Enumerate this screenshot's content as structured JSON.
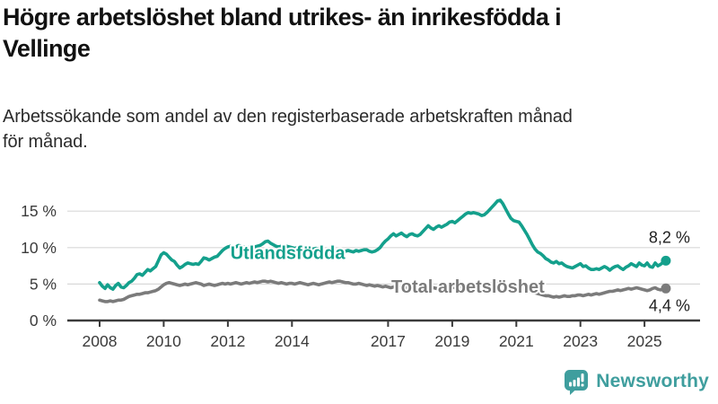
{
  "header": {
    "title_lines": [
      "Högre arbetslöshet bland utrikes- än inrikesfödda i",
      "Vellinge"
    ],
    "subtitle_lines": [
      "Arbetssökande som andel av den registerbaserade arbetskraften månad",
      "för månad."
    ]
  },
  "colors": {
    "foreign_born_line": "#14a08c",
    "total_line": "#7b7b7b",
    "grid": "#d8d8d8",
    "axis": "#3b3b3b",
    "end_label_text": "#1f1f1f",
    "brand_teal": "#3f9e9e"
  },
  "footer": {
    "brand": "Newsworthy",
    "logo_icon": "speech-bubble-bar-chart"
  },
  "chart_data": {
    "type": "line",
    "title": "Högre arbetslöshet bland utrikes- än inrikesfödda i Vellinge",
    "subtitle": "Arbetssökande som andel av den registerbaserade arbetskraften månad för månad.",
    "frequency": "monthly",
    "x_start": {
      "year": 2008,
      "month": 1
    },
    "x_end": {
      "year": 2025,
      "month": 9
    },
    "grid": "horizontal",
    "legend_position": "inline-labels",
    "x_axis": {
      "ticks": [
        "2008",
        "2010",
        "2012",
        "2014",
        "2017",
        "2019",
        "2021",
        "2023",
        "2025"
      ]
    },
    "y_axis": {
      "range": [
        0,
        17.5
      ],
      "ticks": [
        {
          "value": 0,
          "label": "0 %"
        },
        {
          "value": 5,
          "label": "5 %"
        },
        {
          "value": 10,
          "label": "10 %"
        },
        {
          "value": 15,
          "label": "15 %"
        }
      ]
    },
    "series": [
      {
        "name": "Utlandsfödda",
        "slug": "utlandsfodda",
        "color": "#14a08c",
        "end_label": "8,2 %",
        "end_label_pos": "above",
        "label_at": {
          "year": 2012.08,
          "pct": 9.2
        },
        "values": [
          5.2,
          4.7,
          4.4,
          4.9,
          4.5,
          4.3,
          4.8,
          5.1,
          4.6,
          4.5,
          4.8,
          5.2,
          5.4,
          5.8,
          6.3,
          6.4,
          6.2,
          6.6,
          7.0,
          6.8,
          7.1,
          7.4,
          8.2,
          9.0,
          9.3,
          9.1,
          8.7,
          8.3,
          8.1,
          7.6,
          7.2,
          7.4,
          7.7,
          7.9,
          7.8,
          7.7,
          7.8,
          7.7,
          8.1,
          8.6,
          8.5,
          8.3,
          8.5,
          8.7,
          8.8,
          9.2,
          9.6,
          9.9,
          10.1,
          10.2,
          10.0,
          10.1,
          10.3,
          10.2,
          10.1,
          10.0,
          10.1,
          10.2,
          10.1,
          10.2,
          10.3,
          10.5,
          10.8,
          10.9,
          10.6,
          10.4,
          10.2,
          10.1,
          10.2,
          10.3,
          10.2,
          10.1,
          10.0,
          9.9,
          10.0,
          10.1,
          10.0,
          9.9,
          9.8,
          9.7,
          9.8,
          9.9,
          9.8,
          9.7,
          9.6,
          9.5,
          9.6,
          9.7,
          9.6,
          9.5,
          9.5,
          9.4,
          9.5,
          9.6,
          9.5,
          9.4,
          9.6,
          9.5,
          9.6,
          9.7,
          9.7,
          9.5,
          9.4,
          9.5,
          9.7,
          10.0,
          10.5,
          10.9,
          11.2,
          11.6,
          11.9,
          11.6,
          11.8,
          12.0,
          11.7,
          11.5,
          11.8,
          11.9,
          11.7,
          11.6,
          11.8,
          12.2,
          12.6,
          13.0,
          12.7,
          12.5,
          12.8,
          13.0,
          12.8,
          13.0,
          13.2,
          13.5,
          13.6,
          13.4,
          13.7,
          14.0,
          14.3,
          14.6,
          14.8,
          14.7,
          14.8,
          14.7,
          14.6,
          14.4,
          14.5,
          14.8,
          15.2,
          15.6,
          16.0,
          16.4,
          16.5,
          16.0,
          15.3,
          14.6,
          14.0,
          13.7,
          13.6,
          13.5,
          13.0,
          12.4,
          11.8,
          11.1,
          10.4,
          9.8,
          9.4,
          9.2,
          8.9,
          8.5,
          8.3,
          8.0,
          7.9,
          8.1,
          7.8,
          7.9,
          7.6,
          7.4,
          7.3,
          7.2,
          7.4,
          7.6,
          7.8,
          7.4,
          7.5,
          7.2,
          7.0,
          7.0,
          7.1,
          7.0,
          7.2,
          7.4,
          7.2,
          6.9,
          7.2,
          7.4,
          7.5,
          7.2,
          7.0,
          7.3,
          7.5,
          7.8,
          7.6,
          7.4,
          7.9,
          7.6,
          7.5,
          7.9,
          7.4,
          7.3,
          7.9,
          7.5,
          7.7,
          8.0,
          8.2
        ]
      },
      {
        "name": "Total arbetslöshet",
        "slug": "total",
        "color": "#7b7b7b",
        "end_label": "4,4 %",
        "end_label_pos": "below",
        "label_at": {
          "year": 2017.1,
          "pct": 4.55
        },
        "values": [
          2.8,
          2.7,
          2.6,
          2.6,
          2.7,
          2.6,
          2.7,
          2.8,
          2.8,
          2.9,
          3.1,
          3.3,
          3.4,
          3.5,
          3.6,
          3.6,
          3.7,
          3.8,
          3.8,
          3.9,
          4.0,
          4.1,
          4.3,
          4.6,
          4.9,
          5.1,
          5.2,
          5.1,
          5.0,
          4.9,
          4.8,
          4.9,
          5.0,
          4.9,
          5.0,
          5.1,
          5.2,
          5.1,
          5.0,
          4.8,
          4.9,
          5.0,
          4.9,
          4.8,
          4.9,
          5.0,
          5.1,
          5.0,
          5.1,
          5.0,
          5.1,
          5.2,
          5.1,
          5.0,
          5.1,
          5.2,
          5.1,
          5.2,
          5.3,
          5.2,
          5.3,
          5.4,
          5.4,
          5.3,
          5.4,
          5.3,
          5.2,
          5.1,
          5.2,
          5.1,
          5.0,
          5.1,
          5.1,
          5.0,
          5.1,
          5.2,
          5.1,
          5.0,
          4.9,
          5.0,
          5.1,
          5.0,
          4.9,
          5.0,
          5.1,
          5.2,
          5.3,
          5.2,
          5.3,
          5.4,
          5.4,
          5.3,
          5.2,
          5.2,
          5.1,
          5.0,
          5.0,
          5.1,
          5.0,
          4.9,
          4.8,
          4.9,
          4.8,
          4.7,
          4.8,
          4.7,
          4.6,
          4.7,
          4.6,
          4.5,
          4.6,
          4.7,
          4.6,
          4.5,
          4.4,
          4.5,
          4.6,
          4.5,
          4.4,
          4.5,
          4.4,
          4.5,
          4.4,
          4.3,
          4.4,
          4.5,
          4.4,
          4.3,
          4.4,
          4.5,
          4.4,
          4.5,
          4.6,
          4.5,
          4.6,
          4.7,
          4.6,
          4.5,
          4.6,
          4.7,
          4.6,
          4.7,
          4.8,
          4.7,
          4.8,
          4.9,
          5.0,
          5.1,
          5.1,
          5.0,
          5.0,
          4.9,
          4.8,
          4.8,
          4.7,
          4.7,
          4.6,
          4.5,
          4.4,
          4.3,
          4.2,
          4.0,
          3.9,
          3.8,
          3.7,
          3.6,
          3.5,
          3.4,
          3.4,
          3.3,
          3.2,
          3.3,
          3.2,
          3.3,
          3.4,
          3.3,
          3.3,
          3.4,
          3.4,
          3.5,
          3.5,
          3.4,
          3.5,
          3.6,
          3.5,
          3.6,
          3.7,
          3.6,
          3.7,
          3.8,
          3.9,
          4.0,
          4.0,
          4.1,
          4.2,
          4.1,
          4.2,
          4.3,
          4.4,
          4.3,
          4.4,
          4.5,
          4.4,
          4.3,
          4.2,
          4.1,
          4.2,
          4.4,
          4.5,
          4.3,
          4.2,
          4.3,
          4.4
        ]
      }
    ]
  }
}
